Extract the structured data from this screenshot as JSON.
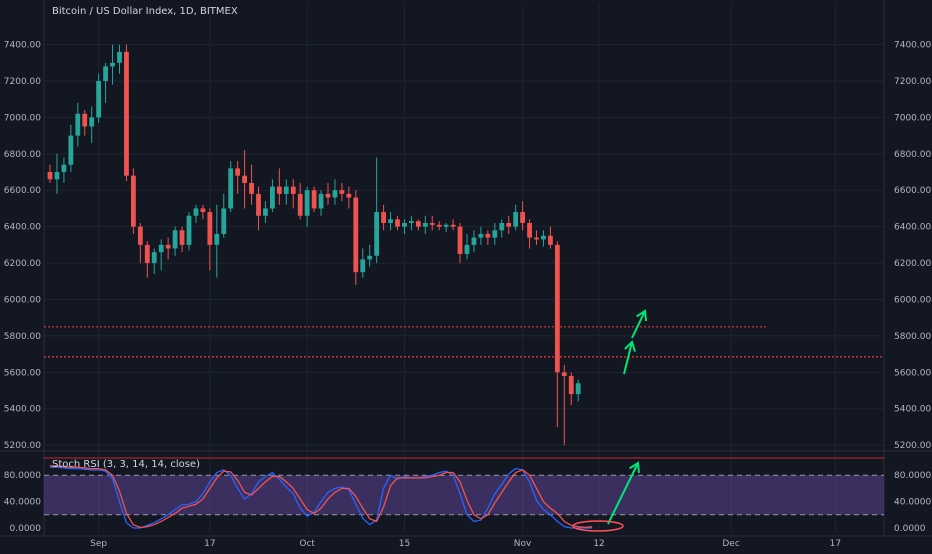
{
  "chart_data": [
    {
      "type": "candlestick",
      "title": "Bitcoin / US Dollar Index, 1D, BITMEX",
      "ylim": [
        5080,
        7480
      ],
      "y_ticks": [
        5200,
        5400,
        5600,
        5800,
        6000,
        6200,
        6400,
        6600,
        6800,
        7000,
        7200,
        7400
      ],
      "y_tick_labels": [
        "5200.00",
        "5400.00",
        "5600.00",
        "5800.00",
        "6000.00",
        "6200.00",
        "6400.00",
        "6600.00",
        "6800.00",
        "7000.00",
        "7200.00",
        "7400.00"
      ],
      "x_tick_labels": [
        {
          "label": "Sep",
          "index": 7
        },
        {
          "label": "17",
          "index": 23
        },
        {
          "label": "Oct",
          "index": 37
        },
        {
          "label": "15",
          "index": 51
        },
        {
          "label": "Nov",
          "index": 68
        },
        {
          "label": "12",
          "index": 79
        },
        {
          "label": "Dec",
          "index": 98
        },
        {
          "label": "17",
          "index": 113
        }
      ],
      "ohlc": [
        [
          6700,
          6740,
          6640,
          6660
        ],
        [
          6660,
          6800,
          6580,
          6700
        ],
        [
          6700,
          6780,
          6640,
          6740
        ],
        [
          6740,
          6960,
          6700,
          6900
        ],
        [
          6900,
          7080,
          6840,
          7020
        ],
        [
          7020,
          7040,
          6900,
          6950
        ],
        [
          6950,
          7060,
          6860,
          7000
        ],
        [
          7000,
          7240,
          6970,
          7200
        ],
        [
          7200,
          7300,
          7080,
          7280
        ],
        [
          7280,
          7400,
          7180,
          7300
        ],
        [
          7300,
          7400,
          7240,
          7360
        ],
        [
          7360,
          7400,
          6650,
          6680
        ],
        [
          6680,
          6720,
          6360,
          6400
        ],
        [
          6400,
          6420,
          6200,
          6300
        ],
        [
          6300,
          6320,
          6120,
          6200
        ],
        [
          6200,
          6280,
          6140,
          6260
        ],
        [
          6260,
          6330,
          6160,
          6300
        ],
        [
          6300,
          6340,
          6220,
          6280
        ],
        [
          6280,
          6400,
          6240,
          6380
        ],
        [
          6380,
          6400,
          6260,
          6300
        ],
        [
          6300,
          6480,
          6270,
          6460
        ],
        [
          6460,
          6520,
          6420,
          6500
        ],
        [
          6500,
          6520,
          6440,
          6480
        ],
        [
          6480,
          6500,
          6160,
          6300
        ],
        [
          6300,
          6520,
          6120,
          6360
        ],
        [
          6360,
          6580,
          6340,
          6500
        ],
        [
          6500,
          6760,
          6480,
          6720
        ],
        [
          6720,
          6760,
          6580,
          6680
        ],
        [
          6680,
          6820,
          6500,
          6640
        ],
        [
          6640,
          6740,
          6520,
          6580
        ],
        [
          6580,
          6620,
          6380,
          6460
        ],
        [
          6460,
          6540,
          6420,
          6500
        ],
        [
          6500,
          6660,
          6480,
          6620
        ],
        [
          6620,
          6720,
          6520,
          6580
        ],
        [
          6580,
          6660,
          6520,
          6620
        ],
        [
          6620,
          6660,
          6500,
          6580
        ],
        [
          6580,
          6640,
          6440,
          6460
        ],
        [
          6460,
          6620,
          6400,
          6600
        ],
        [
          6600,
          6620,
          6480,
          6500
        ],
        [
          6500,
          6600,
          6460,
          6580
        ],
        [
          6580,
          6640,
          6520,
          6560
        ],
        [
          6560,
          6660,
          6520,
          6600
        ],
        [
          6600,
          6640,
          6540,
          6580
        ],
        [
          6580,
          6620,
          6500,
          6560
        ],
        [
          6560,
          6600,
          6080,
          6150
        ],
        [
          6150,
          6280,
          6120,
          6220
        ],
        [
          6220,
          6300,
          6180,
          6240
        ],
        [
          6240,
          6780,
          6200,
          6480
        ],
        [
          6480,
          6520,
          6380,
          6420
        ],
        [
          6420,
          6480,
          6380,
          6440
        ],
        [
          6440,
          6460,
          6380,
          6400
        ],
        [
          6400,
          6440,
          6360,
          6420
        ],
        [
          6420,
          6460,
          6380,
          6430
        ],
        [
          6430,
          6440,
          6380,
          6400
        ],
        [
          6400,
          6460,
          6360,
          6420
        ],
        [
          6420,
          6460,
          6380,
          6410
        ],
        [
          6410,
          6430,
          6380,
          6400
        ],
        [
          6400,
          6420,
          6370,
          6410
        ],
        [
          6410,
          6440,
          6380,
          6400
        ],
        [
          6400,
          6420,
          6200,
          6250
        ],
        [
          6250,
          6360,
          6220,
          6300
        ],
        [
          6300,
          6380,
          6260,
          6340
        ],
        [
          6340,
          6400,
          6300,
          6360
        ],
        [
          6360,
          6380,
          6300,
          6340
        ],
        [
          6340,
          6420,
          6300,
          6380
        ],
        [
          6380,
          6440,
          6340,
          6420
        ],
        [
          6420,
          6460,
          6360,
          6400
        ],
        [
          6400,
          6520,
          6380,
          6480
        ],
        [
          6480,
          6540,
          6380,
          6420
        ],
        [
          6420,
          6440,
          6280,
          6340
        ],
        [
          6340,
          6380,
          6300,
          6330
        ],
        [
          6330,
          6380,
          6290,
          6350
        ],
        [
          6350,
          6400,
          6280,
          6300
        ],
        [
          6300,
          6320,
          5300,
          5600
        ],
        [
          5600,
          5640,
          5200,
          5580
        ],
        [
          5580,
          5600,
          5420,
          5480
        ],
        [
          5480,
          5560,
          5440,
          5540
        ]
      ],
      "resistance_lines": [
        5850,
        5685
      ],
      "annotations": [
        "arrow-up",
        "arrow-up"
      ]
    },
    {
      "type": "line",
      "title": "Stoch RSI (3, 3, 14, 14, close)",
      "ylim": [
        0,
        100
      ],
      "y_ticks": [
        0,
        40,
        80
      ],
      "y_tick_labels": [
        "0.0000",
        "40.0000",
        "80.0000"
      ],
      "bands": [
        20,
        80
      ],
      "series": [
        {
          "color": "#2962ff",
          "values": [
            92,
            92,
            91,
            90,
            90,
            89,
            88,
            88,
            86,
            75,
            40,
            8,
            0,
            0,
            4,
            8,
            14,
            20,
            28,
            35,
            36,
            40,
            52,
            70,
            84,
            88,
            80,
            60,
            44,
            52,
            70,
            78,
            84,
            74,
            62,
            52,
            30,
            18,
            24,
            40,
            54,
            60,
            62,
            58,
            36,
            15,
            5,
            12,
            60,
            80,
            74,
            78,
            76,
            76,
            78,
            80,
            84,
            86,
            80,
            52,
            20,
            10,
            12,
            30,
            52,
            66,
            82,
            90,
            88,
            70,
            42,
            28,
            20,
            10,
            2,
            0,
            0,
            0,
            0
          ]
        },
        {
          "color": "#ef5350",
          "values": [
            94,
            94,
            93,
            92,
            92,
            91,
            90,
            90,
            88,
            80,
            56,
            22,
            5,
            1,
            2,
            5,
            10,
            16,
            22,
            30,
            33,
            36,
            44,
            60,
            76,
            86,
            85,
            72,
            54,
            50,
            60,
            70,
            78,
            78,
            70,
            60,
            44,
            28,
            22,
            30,
            44,
            54,
            60,
            60,
            48,
            30,
            14,
            10,
            32,
            64,
            76,
            76,
            76,
            76,
            76,
            78,
            80,
            84,
            84,
            70,
            42,
            20,
            14,
            20,
            38,
            54,
            70,
            84,
            88,
            80,
            60,
            40,
            30,
            22,
            10,
            4,
            2,
            1,
            2
          ]
        }
      ],
      "annotations": [
        "arrow-up",
        "ellipse"
      ]
    }
  ]
}
